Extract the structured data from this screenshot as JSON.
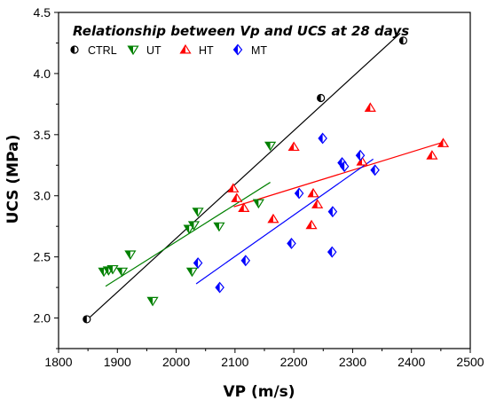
{
  "chart_data": {
    "type": "scatter",
    "title": "Relationship between Vp and UCS at 28 days",
    "xlabel": "VP (m/s)",
    "ylabel": "UCS (MPa)",
    "xlim": [
      1800,
      2500
    ],
    "ylim": [
      1.75,
      4.5
    ],
    "x_ticks": [
      1800,
      1900,
      2000,
      2100,
      2200,
      2300,
      2400,
      2500
    ],
    "y_ticks": [
      2.0,
      2.5,
      3.0,
      3.5,
      4.0,
      4.5
    ],
    "x_tick_labels": [
      "1800",
      "1900",
      "2000",
      "2100",
      "2200",
      "2300",
      "2400",
      "2500"
    ],
    "y_tick_labels": [
      "2.0",
      "2.5",
      "3.0",
      "3.5",
      "4.0",
      "4.5"
    ],
    "legend_position": "top-left",
    "grid": false,
    "series": [
      {
        "name": "CTRL",
        "color": "#000000",
        "marker": "half-filled-circle",
        "points": [
          [
            1848,
            1.99
          ],
          [
            2246,
            3.8
          ],
          [
            2386,
            4.27
          ]
        ],
        "fit": [
          [
            1845,
            1.97
          ],
          [
            2381,
            4.33
          ]
        ]
      },
      {
        "name": "UT",
        "color": "#008000",
        "marker": "half-filled-triangle-down",
        "points": [
          [
            1877,
            2.38
          ],
          [
            1885,
            2.39
          ],
          [
            1892,
            2.4
          ],
          [
            1908,
            2.38
          ],
          [
            1922,
            2.52
          ],
          [
            1960,
            2.14
          ],
          [
            2027,
            2.38
          ],
          [
            2022,
            2.73
          ],
          [
            2030,
            2.76
          ],
          [
            2037,
            2.87
          ],
          [
            2073,
            2.75
          ],
          [
            2140,
            2.94
          ],
          [
            2160,
            3.41
          ]
        ],
        "fit": [
          [
            1880,
            2.26
          ],
          [
            2160,
            3.11
          ]
        ]
      },
      {
        "name": "HT",
        "color": "#ff0000",
        "marker": "half-filled-triangle-up",
        "points": [
          [
            2097,
            3.06
          ],
          [
            2103,
            2.98
          ],
          [
            2115,
            2.9
          ],
          [
            2165,
            2.81
          ],
          [
            2200,
            3.4
          ],
          [
            2230,
            2.76
          ],
          [
            2233,
            3.02
          ],
          [
            2240,
            2.93
          ],
          [
            2316,
            3.28
          ],
          [
            2330,
            3.72
          ],
          [
            2435,
            3.33
          ],
          [
            2454,
            3.43
          ]
        ],
        "fit": [
          [
            2098,
            2.91
          ],
          [
            2455,
            3.44
          ]
        ]
      },
      {
        "name": "MT",
        "color": "#0000ff",
        "marker": "half-filled-diamond",
        "points": [
          [
            2037,
            2.45
          ],
          [
            2074,
            2.25
          ],
          [
            2118,
            2.47
          ],
          [
            2196,
            2.61
          ],
          [
            2209,
            3.02
          ],
          [
            2249,
            3.47
          ],
          [
            2265,
            2.54
          ],
          [
            2266,
            2.87
          ],
          [
            2282,
            3.27
          ],
          [
            2286,
            3.24
          ],
          [
            2313,
            3.33
          ],
          [
            2338,
            3.21
          ]
        ],
        "fit": [
          [
            2034,
            2.28
          ],
          [
            2335,
            3.3
          ]
        ]
      }
    ]
  }
}
